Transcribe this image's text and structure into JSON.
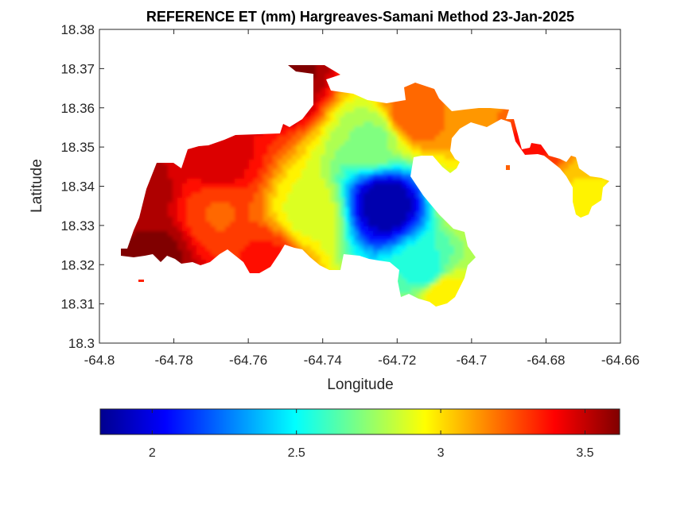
{
  "figure": {
    "title": "REFERENCE ET (mm) Hargreaves-Samani Method  23-Jan-2025",
    "xlabel": "Longitude",
    "ylabel": "Latitude",
    "xticks": [
      "-64.8",
      "-64.78",
      "-64.76",
      "-64.74",
      "-64.72",
      "-64.7",
      "-64.68",
      "-64.66"
    ],
    "yticks": [
      "18.3",
      "18.31",
      "18.32",
      "18.33",
      "18.34",
      "18.35",
      "18.36",
      "18.37",
      "18.38"
    ],
    "colorbar_ticks": [
      "2",
      "2.5",
      "3",
      "3.5"
    ]
  },
  "chart_data": {
    "type": "heatmap",
    "title": "REFERENCE ET (mm) Hargreaves-Samani Method  23-Jan-2025",
    "xlabel": "Longitude",
    "ylabel": "Latitude",
    "xlim": [
      -64.8,
      -64.66
    ],
    "ylim": [
      18.3,
      18.38
    ],
    "colormap": "jet",
    "clim": [
      1.82,
      3.62
    ],
    "colorbar_ticks": [
      2,
      2.5,
      3,
      3.5
    ],
    "colorbar_location": "south",
    "grid": false,
    "value_centers": [
      {
        "lon": -64.723,
        "lat": 18.3355,
        "value": 1.88
      },
      {
        "lon": -64.744,
        "lat": 18.333,
        "value": 2.9
      },
      {
        "lon": -64.726,
        "lat": 18.352,
        "value": 2.75
      },
      {
        "lon": -64.712,
        "lat": 18.318,
        "value": 2.55
      },
      {
        "lon": -64.708,
        "lat": 18.313,
        "value": 3.0
      },
      {
        "lon": -64.768,
        "lat": 18.333,
        "value": 3.25
      },
      {
        "lon": -64.79,
        "lat": 18.338,
        "value": 3.55
      },
      {
        "lon": -64.785,
        "lat": 18.322,
        "value": 3.6
      },
      {
        "lon": -64.768,
        "lat": 18.346,
        "value": 3.45
      },
      {
        "lon": -64.7505,
        "lat": 18.368,
        "value": 3.6
      },
      {
        "lon": -64.716,
        "lat": 18.358,
        "value": 3.25
      },
      {
        "lon": -64.7,
        "lat": 18.357,
        "value": 3.15
      },
      {
        "lon": -64.7,
        "lat": 18.338,
        "value": 2.9
      },
      {
        "lon": -64.671,
        "lat": 18.336,
        "value": 3.0
      },
      {
        "lon": -64.686,
        "lat": 18.349,
        "value": 3.35
      },
      {
        "lon": -64.755,
        "lat": 18.321,
        "value": 3.35
      }
    ]
  }
}
